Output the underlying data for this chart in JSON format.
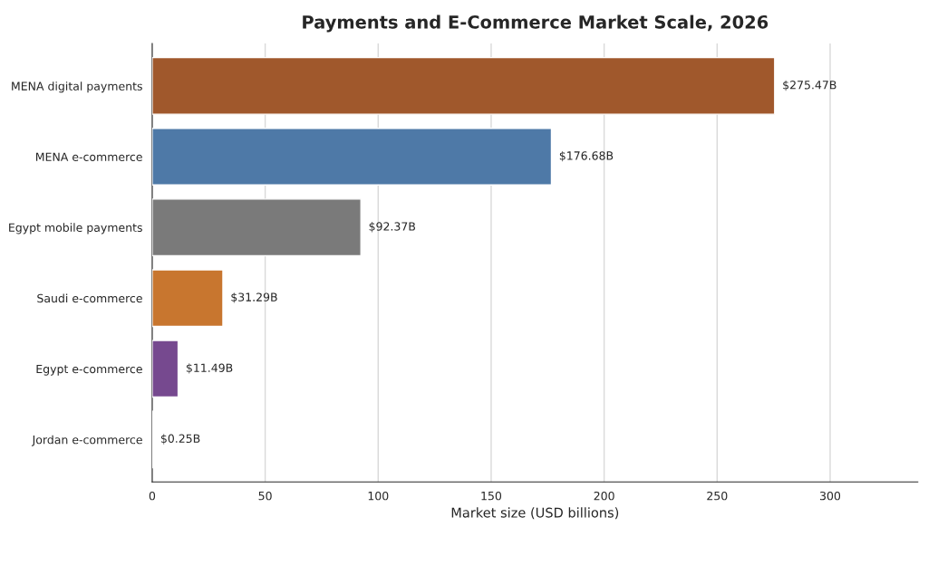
{
  "chart_data": {
    "type": "bar",
    "orientation": "horizontal",
    "title": "Payments and E-Commerce Market Scale, 2026",
    "xlabel": "Market size (USD billions)",
    "categories": [
      "MENA digital payments",
      "MENA e-commerce",
      "Egypt mobile payments",
      "Saudi e-commerce",
      "Egypt e-commerce",
      "Jordan e-commerce"
    ],
    "values": [
      275.47,
      176.68,
      92.37,
      31.29,
      11.49,
      0.25
    ],
    "colors": [
      "#a0582c",
      "#4e79a7",
      "#7a7a7a",
      "#c8762f",
      "#76498f",
      "#59a14f"
    ],
    "value_labels": [
      "$275.47B",
      "$176.68B",
      "$92.37B",
      "$31.29B",
      "$11.49B",
      "$0.25B"
    ],
    "xlim": [
      0,
      338.8
    ],
    "xticks": [
      0,
      50,
      100,
      150,
      200,
      250,
      300
    ],
    "grid": "x",
    "legend": false
  }
}
